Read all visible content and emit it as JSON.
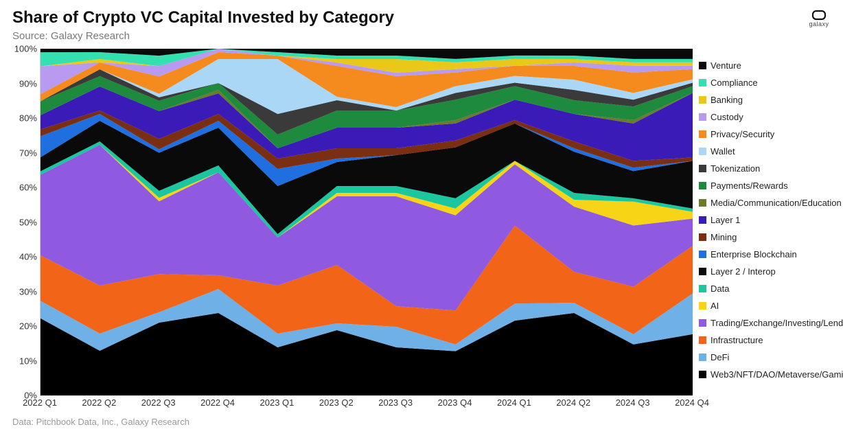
{
  "title": "Share of Crypto VC Capital Invested by Category",
  "subtitle": "Source: Galaxy Research",
  "footer": "Data: Pitchbook Data, Inc., Galaxy Research",
  "logo_text": "galaxy",
  "chart": {
    "type": "stacked-area-100pct",
    "background_color": "#ffffff",
    "grid_color": "#e8e8e8",
    "axis_color": "#d0d0d0",
    "label_color": "#333333",
    "label_fontsize": 13,
    "title_fontsize": 24,
    "title_color": "#111111",
    "subtitle_fontsize": 15,
    "subtitle_color": "#7a7a7a",
    "ylim": [
      0,
      100
    ],
    "ytick_step": 10,
    "ytick_format": "{v}%",
    "x_labels": [
      "2022 Q1",
      "2022 Q2",
      "2022 Q3",
      "2022 Q4",
      "2023 Q1",
      "2023 Q2",
      "2023 Q3",
      "2023 Q4",
      "2024 Q1",
      "2024 Q2",
      "2024 Q3",
      "2024 Q4"
    ],
    "series": [
      {
        "name": "Web3/NFT/DAO/Metaverse/Gaming",
        "color": "#000000",
        "values": [
          22,
          13,
          21,
          24,
          14,
          19,
          14,
          13,
          22,
          24,
          15,
          18
        ]
      },
      {
        "name": "DeFi",
        "color": "#6fb1e7",
        "values": [
          5,
          5,
          3,
          7,
          4,
          2,
          6,
          2,
          5,
          3,
          3,
          12
        ]
      },
      {
        "name": "Infrastructure",
        "color": "#f26417",
        "values": [
          13,
          14,
          11,
          4,
          14,
          17,
          6,
          10,
          23,
          9,
          14,
          14
        ]
      },
      {
        "name": "Trading/Exchange/Investing/Lending",
        "color": "#8f59e0",
        "values": [
          23,
          41,
          21,
          30,
          14,
          20,
          32,
          28,
          18,
          19,
          18,
          8
        ]
      },
      {
        "name": "AI",
        "color": "#f7d416",
        "values": [
          0,
          0,
          1,
          0,
          0,
          1,
          1,
          2,
          1,
          2,
          7,
          2
        ]
      },
      {
        "name": "Data",
        "color": "#1cc7a0",
        "values": [
          1,
          1,
          2,
          2,
          1,
          2,
          2,
          3,
          0,
          2,
          1,
          1
        ]
      },
      {
        "name": "Layer 2 / Interop",
        "color": "#0a0a0a",
        "values": [
          4,
          6,
          11,
          11,
          14,
          7,
          9,
          15,
          11,
          12,
          8,
          14
        ]
      },
      {
        "name": "Enterprise Blockchain",
        "color": "#1f6fe0",
        "values": [
          6,
          2,
          1,
          2,
          5,
          1,
          0,
          0,
          0,
          1,
          1,
          0
        ]
      },
      {
        "name": "Mining",
        "color": "#7a2e12",
        "values": [
          2,
          1,
          3,
          2,
          3,
          3,
          2,
          2,
          1,
          2,
          2,
          1
        ]
      },
      {
        "name": "Layer 1",
        "color": "#3b1bb8",
        "values": [
          4,
          7,
          8,
          6,
          3,
          6,
          6,
          5,
          6,
          8,
          11,
          19
        ]
      },
      {
        "name": "Media/Communication/Education",
        "color": "#6b7a2b",
        "values": [
          0,
          0,
          0,
          1,
          0,
          0,
          0,
          1,
          0,
          0,
          1,
          0
        ]
      },
      {
        "name": "Payments/Rewards",
        "color": "#1e8a3e",
        "values": [
          4,
          3,
          3,
          2,
          4,
          5,
          5,
          6,
          4,
          4,
          4,
          2
        ]
      },
      {
        "name": "Tokenization",
        "color": "#3a3a3a",
        "values": [
          0,
          2,
          1,
          0,
          6,
          3,
          0,
          2,
          1,
          3,
          2,
          1
        ]
      },
      {
        "name": "Wallet",
        "color": "#a9d7f5",
        "values": [
          0,
          0,
          1,
          7,
          16,
          1,
          1,
          2,
          2,
          3,
          2,
          1
        ]
      },
      {
        "name": "Privacy/Security",
        "color": "#f58a1f",
        "values": [
          2,
          2,
          5,
          2,
          1,
          9,
          9,
          4,
          3,
          4,
          6,
          3
        ]
      },
      {
        "name": "Custody",
        "color": "#b89bf0",
        "values": [
          8,
          0,
          3,
          1,
          0,
          1,
          1,
          1,
          0,
          1,
          2,
          1
        ]
      },
      {
        "name": "Banking",
        "color": "#e9c81a",
        "values": [
          0,
          1,
          0,
          0,
          0,
          1,
          4,
          2,
          2,
          1,
          1,
          1
        ]
      },
      {
        "name": "Compliance",
        "color": "#34e0b0",
        "values": [
          4,
          2,
          3,
          0,
          1,
          1,
          1,
          1,
          1,
          1,
          1,
          1
        ]
      },
      {
        "name": "Venture",
        "color": "#0a0a0a",
        "values": [
          1,
          1,
          2,
          0,
          1,
          2,
          2,
          3,
          2,
          2,
          3,
          3
        ]
      }
    ],
    "legend_order_top_to_bottom": [
      "Venture",
      "Compliance",
      "Banking",
      "Custody",
      "Privacy/Security",
      "Wallet",
      "Tokenization",
      "Payments/Rewards",
      "Media/Communication/Education",
      "Layer 1",
      "Mining",
      "Enterprise Blockchain",
      "Layer 2 / Interop",
      "Data",
      "AI",
      "Trading/Exchange/Investing/Lending",
      "Infrastructure",
      "DeFi",
      "Web3/NFT/DAO/Metaverse/Gaming"
    ]
  }
}
